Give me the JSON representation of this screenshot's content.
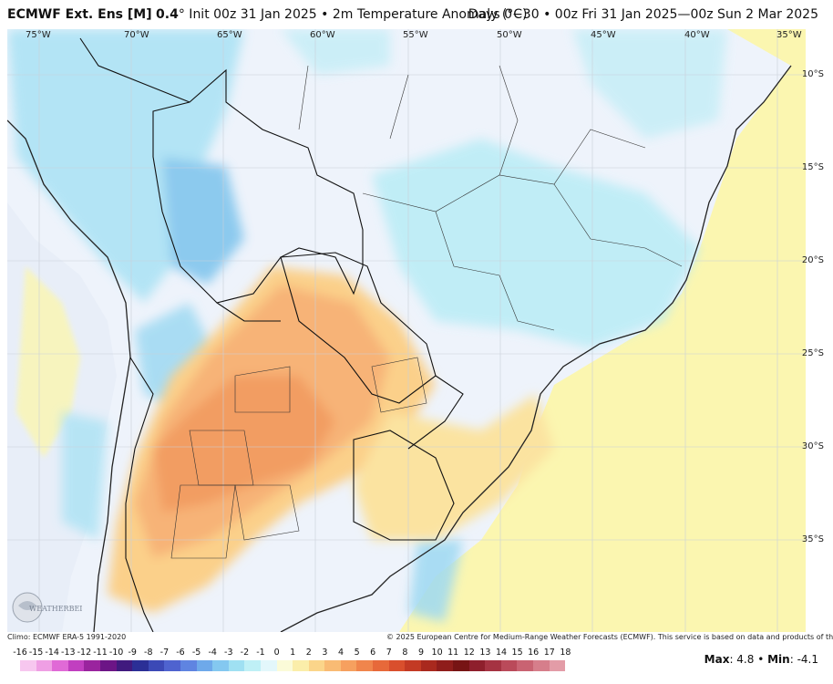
{
  "header": {
    "model": "ECMWF Ext. Ens [M]",
    "resolution": "0.4",
    "title_rest": "° Init 00z 31 Jan 2025 • 2m Temperature Anomaly (°C)",
    "valid": "Days 0−30 • 00z Fri 31 Jan 2025—00z Sun 2 Mar 2025"
  },
  "longitudes": [
    "75°W",
    "70°W",
    "65°W",
    "60°W",
    "55°W",
    "50°W",
    "45°W",
    "40°W",
    "35°W"
  ],
  "latitudes": [
    "10°S",
    "15°S",
    "20°S",
    "25°S",
    "30°S",
    "35°S"
  ],
  "footer": {
    "climo": "Climo: ECMWF ERA-5 1991-2020",
    "copyright": "© 2025 European Centre for Medium-Range Weather Forecasts (ECMWF). This service is based on data and products of the ECMWF."
  },
  "legend": {
    "ticks": [
      "-16",
      "-15",
      "-14",
      "-13",
      "-12",
      "-11",
      "-10",
      "-9",
      "-8",
      "-7",
      "-6",
      "-5",
      "-4",
      "-3",
      "-2",
      "-1",
      "0",
      "1",
      "2",
      "3",
      "4",
      "5",
      "6",
      "7",
      "8",
      "9",
      "10",
      "11",
      "12",
      "13",
      "14",
      "15",
      "16",
      "17",
      "18"
    ],
    "colors": [
      "#f7c7ef",
      "#ef9fe4",
      "#e06ad6",
      "#c13fc0",
      "#9a249e",
      "#6c1586",
      "#401a7e",
      "#2b2f96",
      "#3c49b6",
      "#4f63cf",
      "#5f84e1",
      "#6ea9ea",
      "#84c8f0",
      "#9fe0f2",
      "#bff0f6",
      "#e3f7fb",
      "#fbfbd8",
      "#fbeeaa",
      "#fbd58a",
      "#f9bb74",
      "#f6a05f",
      "#f0854c",
      "#e7693a",
      "#d94f2d",
      "#c33a24",
      "#a9291e",
      "#8f1d1b",
      "#771414",
      "#8e1f2c",
      "#a53342",
      "#ba4a5a",
      "#c96372",
      "#d67e8b",
      "#e39ca7"
    ],
    "max_label": "Max",
    "max": "4.8",
    "min_label": "Min",
    "min": "-4.1"
  },
  "logo_text": "WEATHERBELL"
}
